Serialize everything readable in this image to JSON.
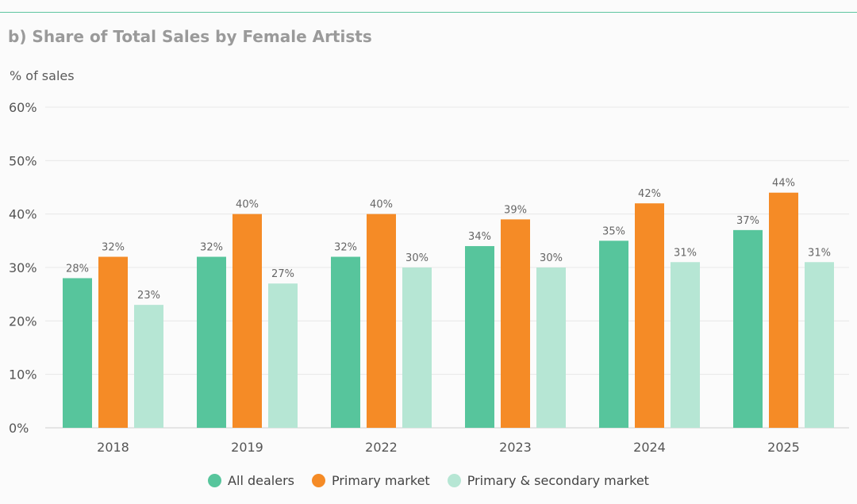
{
  "header": {
    "title": "b) Share of Total Sales by Female Artists",
    "y_unit_label": "% of sales"
  },
  "colors": {
    "all_dealers": "#57c59c",
    "primary_market": "#f58b26",
    "primary_secondary_market": "#b6e6d4",
    "grid": "#e8e8e8",
    "accent_rule": "#5fc6a0"
  },
  "chart_data": {
    "type": "bar",
    "title": "b) Share of Total Sales by Female Artists",
    "ylabel": "% of sales",
    "xlabel": "",
    "categories": [
      "2018",
      "2019",
      "2022",
      "2023",
      "2024",
      "2025"
    ],
    "ylim": [
      0,
      60
    ],
    "yticks": [
      0,
      10,
      20,
      30,
      40,
      50,
      60
    ],
    "ytick_labels": [
      "0%",
      "10%",
      "20%",
      "30%",
      "40%",
      "50%",
      "60%"
    ],
    "grid": true,
    "legend_position": "bottom-center",
    "series": [
      {
        "name": "All dealers",
        "color_key": "all_dealers",
        "values": [
          28,
          32,
          32,
          34,
          35,
          37
        ],
        "labels": [
          "28%",
          "32%",
          "32%",
          "34%",
          "35%",
          "37%"
        ]
      },
      {
        "name": "Primary market",
        "color_key": "primary_market",
        "values": [
          32,
          40,
          40,
          39,
          42,
          44
        ],
        "labels": [
          "32%",
          "40%",
          "40%",
          "39%",
          "42%",
          "44%"
        ]
      },
      {
        "name": "Primary & secondary market",
        "color_key": "primary_secondary_market",
        "values": [
          23,
          27,
          30,
          30,
          31,
          31
        ],
        "labels": [
          "23%",
          "27%",
          "30%",
          "30%",
          "31%",
          "31%"
        ]
      }
    ]
  },
  "legend": {
    "items": [
      {
        "label": "All dealers",
        "color_key": "all_dealers"
      },
      {
        "label": "Primary market",
        "color_key": "primary_market"
      },
      {
        "label": "Primary & secondary market",
        "color_key": "primary_secondary_market"
      }
    ]
  }
}
